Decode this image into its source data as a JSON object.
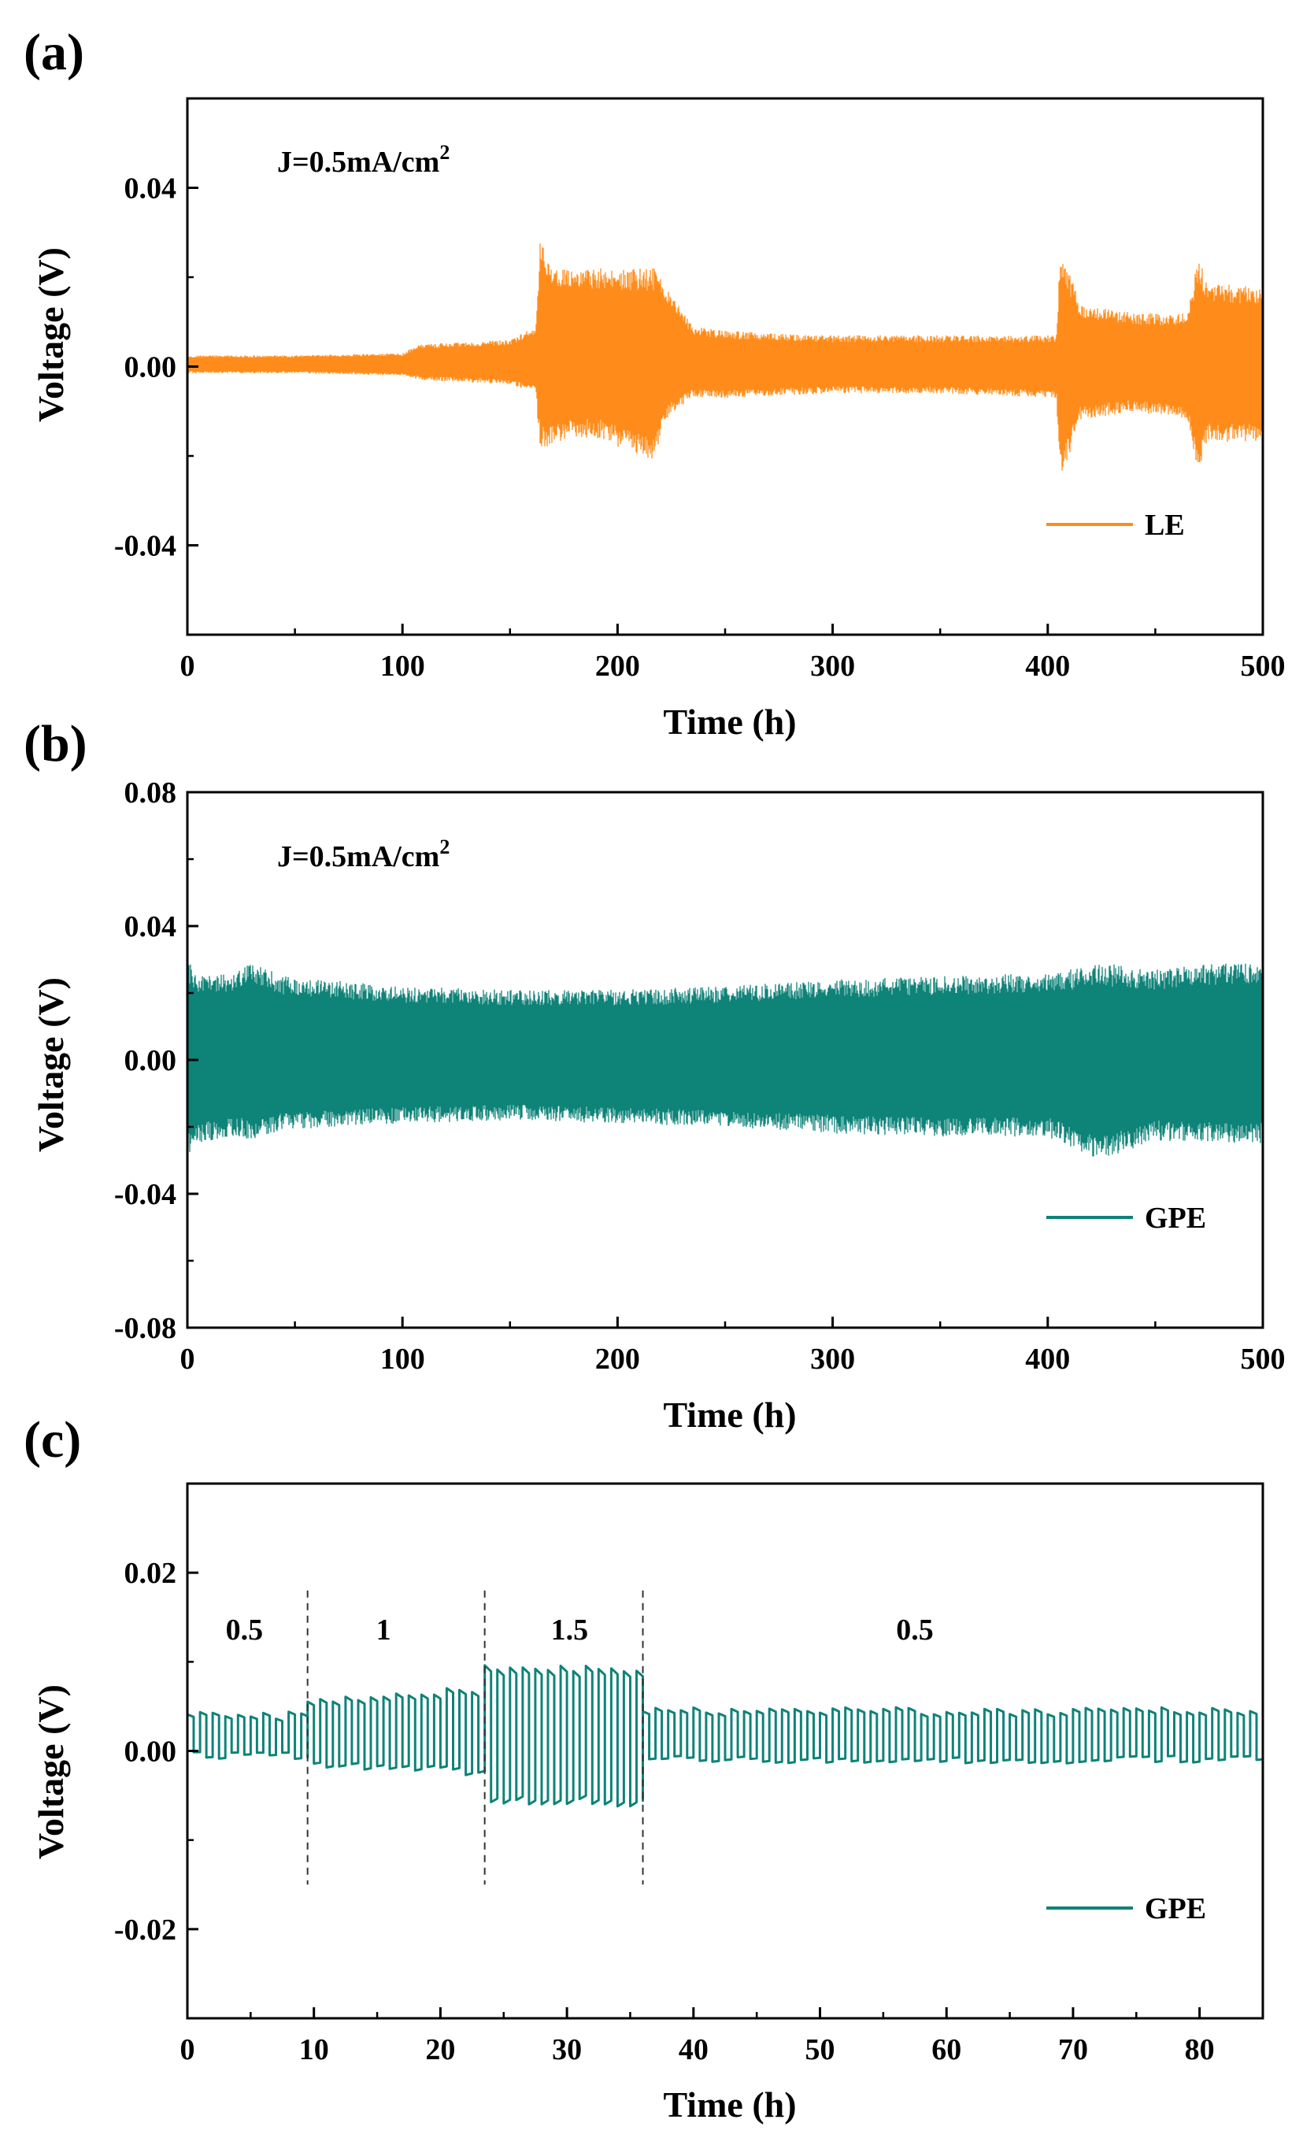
{
  "chart_data": [
    {
      "type": "line",
      "panel": "(a)",
      "title": "",
      "annotation": "J=0.5mA/cm",
      "annotation_sup": "2",
      "xlabel": "Time (h)",
      "ylabel": "Voltage (V)",
      "xlim": [
        0,
        500
      ],
      "ylim": [
        -0.06,
        0.06
      ],
      "xticks": [
        0,
        100,
        200,
        300,
        400,
        500
      ],
      "xtick_labels": [
        "0",
        "100",
        "200",
        "300",
        "400",
        "500"
      ],
      "yticks": [
        0.04,
        0.0,
        -0.04
      ],
      "ytick_labels": [
        "0.04",
        "0.00",
        "-0.04"
      ],
      "grid": false,
      "legend": "bottom-right",
      "series": [
        {
          "name": "LE",
          "color": "#FF8C1A",
          "kind": "oscillation-envelope",
          "x": [
            0,
            50,
            100,
            108,
            150,
            162,
            164,
            170,
            190,
            200,
            210,
            217,
            222,
            235,
            250,
            300,
            350,
            404,
            406,
            415,
            440,
            465,
            470,
            474,
            490,
            500
          ],
          "upper": [
            0.0025,
            0.0025,
            0.003,
            0.005,
            0.006,
            0.009,
            0.028,
            0.022,
            0.022,
            0.022,
            0.022,
            0.022,
            0.018,
            0.009,
            0.008,
            0.007,
            0.007,
            0.007,
            0.027,
            0.014,
            0.012,
            0.012,
            0.025,
            0.019,
            0.018,
            0.018
          ],
          "lower": [
            -0.0015,
            -0.0015,
            -0.002,
            -0.003,
            -0.004,
            -0.006,
            -0.019,
            -0.017,
            -0.016,
            -0.018,
            -0.02,
            -0.021,
            -0.012,
            -0.007,
            -0.007,
            -0.006,
            -0.006,
            -0.007,
            -0.026,
            -0.012,
            -0.01,
            -0.012,
            -0.024,
            -0.017,
            -0.017,
            -0.017
          ]
        }
      ]
    },
    {
      "type": "line",
      "panel": "(b)",
      "title": "",
      "annotation": "J=0.5mA/cm",
      "annotation_sup": "2",
      "xlabel": "Time (h)",
      "ylabel": "Voltage (V)",
      "xlim": [
        0,
        500
      ],
      "ylim": [
        -0.08,
        0.08
      ],
      "xticks": [
        0,
        100,
        200,
        300,
        400,
        500
      ],
      "xtick_labels": [
        "0",
        "100",
        "200",
        "300",
        "400",
        "500"
      ],
      "yticks": [
        0.08,
        0.04,
        0.0,
        -0.04,
        -0.08
      ],
      "ytick_labels": [
        "0.08",
        "0.04",
        "0.00",
        "-0.04",
        "-0.08"
      ],
      "grid": false,
      "legend": "bottom-right",
      "series": [
        {
          "name": "GPE",
          "color": "#0E8378",
          "kind": "oscillation-envelope",
          "x": [
            0,
            5,
            20,
            30,
            45,
            100,
            150,
            200,
            250,
            300,
            350,
            400,
            425,
            450,
            480,
            500
          ],
          "upper": [
            0.03,
            0.026,
            0.026,
            0.029,
            0.025,
            0.022,
            0.021,
            0.021,
            0.022,
            0.024,
            0.025,
            0.026,
            0.029,
            0.027,
            0.029,
            0.029
          ],
          "lower": [
            -0.029,
            -0.025,
            -0.023,
            -0.024,
            -0.021,
            -0.019,
            -0.018,
            -0.019,
            -0.02,
            -0.022,
            -0.023,
            -0.023,
            -0.03,
            -0.024,
            -0.025,
            -0.025
          ]
        }
      ]
    },
    {
      "type": "line",
      "panel": "(c)",
      "title": "",
      "xlabel": "Time (h)",
      "ylabel": "Voltage (V)",
      "xlim": [
        0,
        85
      ],
      "ylim": [
        -0.03,
        0.03
      ],
      "xticks": [
        0,
        10,
        20,
        30,
        40,
        50,
        60,
        70,
        80
      ],
      "xtick_labels": [
        "0",
        "10",
        "20",
        "30",
        "40",
        "50",
        "60",
        "70",
        "80"
      ],
      "yticks": [
        0.02,
        0.0,
        -0.02
      ],
      "ytick_labels": [
        "0.02",
        "0.00",
        "-0.02"
      ],
      "grid": false,
      "legend": "bottom-right",
      "segment_dividers": [
        9.5,
        23.5,
        36
      ],
      "segment_labels": [
        {
          "text": "0.5",
          "x": 4.5
        },
        {
          "text": "1",
          "x": 15.5
        },
        {
          "text": "1.5",
          "x": 30.2
        },
        {
          "text": "0.5",
          "x": 57.5
        }
      ],
      "series": [
        {
          "name": "GPE",
          "color": "#0E8378",
          "kind": "square-wave",
          "cycle_hours": 1.0,
          "segments": [
            {
              "start": 0,
              "end": 9.5,
              "high": 0.004,
              "low": -0.0005
            },
            {
              "start": 9.5,
              "end": 23.5,
              "high": 0.0055,
              "low": -0.0015,
              "high_end": 0.007,
              "low_end": -0.0025
            },
            {
              "start": 23.5,
              "end": 36,
              "high": 0.0095,
              "low": -0.0055,
              "high_end": 0.009,
              "low_end": -0.006
            },
            {
              "start": 36,
              "end": 85,
              "high": 0.0045,
              "low": -0.001
            }
          ]
        }
      ]
    }
  ]
}
